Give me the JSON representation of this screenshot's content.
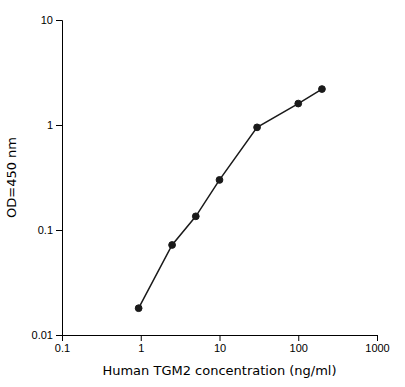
{
  "chart_data": {
    "type": "line",
    "x": [
      0.94,
      2.5,
      5,
      10,
      30,
      100,
      200
    ],
    "values": [
      0.018,
      0.072,
      0.135,
      0.3,
      0.95,
      1.6,
      2.2
    ],
    "xlim": [
      0.1,
      1000
    ],
    "ylim": [
      0.01,
      10
    ],
    "xticks": [
      0.1,
      1,
      10,
      100,
      1000
    ],
    "yticks": [
      0.01,
      0.1,
      1,
      10
    ],
    "xlabel": "Human TGM2 concentration (ng/ml)",
    "ylabel": "OD=450 nm",
    "log": true,
    "grid": false,
    "color": "#1a1a1a",
    "marker": "circle",
    "line_style": "solid"
  }
}
